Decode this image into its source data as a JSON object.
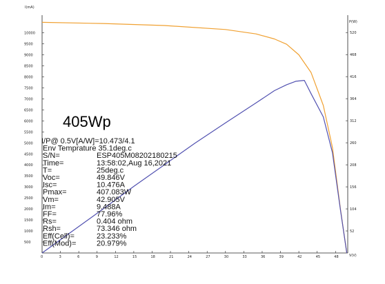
{
  "chart_data": {
    "type": "line",
    "title": "405Wp",
    "y_left_unit": "I(mA)",
    "y_right_unit": "P(W)",
    "x_unit": "V(V)",
    "x_ticks": [
      "0",
      "3",
      "6",
      "9",
      "12",
      "15",
      "18",
      "21",
      "24",
      "27",
      "30",
      "33",
      "36",
      "39",
      "42",
      "45",
      "48"
    ],
    "y_left_ticks": [
      "500",
      "1000",
      "1500",
      "2000",
      "2500",
      "3000",
      "3500",
      "4000",
      "4500",
      "5000",
      "5500",
      "6000",
      "6500",
      "7000",
      "7500",
      "8000",
      "8500",
      "9000",
      "9500",
      "10000"
    ],
    "y_right_ticks": [
      "52",
      "104",
      "156",
      "208",
      "260",
      "312",
      "364",
      "416",
      "468",
      "520"
    ],
    "xlim": [
      0,
      50
    ],
    "ylim_left": [
      0,
      10800
    ],
    "ylim_right": [
      0,
      561
    ],
    "grid": false,
    "series": [
      {
        "axis": "left",
        "color": "#f0a030",
        "x": [
          0,
          10,
          20,
          30,
          35,
          38,
          40,
          42,
          44,
          46,
          47.5,
          48.8,
          49.846
        ],
        "y": [
          10476,
          10420,
          10330,
          10150,
          9950,
          9720,
          9480,
          9000,
          8200,
          6700,
          4800,
          2000,
          0
        ]
      },
      {
        "axis": "right",
        "color": "#5050b0",
        "x": [
          0,
          5,
          10,
          15,
          20,
          25,
          30,
          35,
          38,
          40,
          41.5,
          42.9,
          44,
          46,
          47.5,
          48.8,
          49.846
        ],
        "y": [
          0,
          52,
          104,
          157,
          208,
          259,
          307,
          354,
          383,
          397,
          405,
          407.1,
          376,
          321,
          237,
          102,
          0
        ]
      }
    ]
  },
  "readout": {
    "title": "405Wp",
    "lines": [
      {
        "label": "I/P@ 0.5V[A/W]=10.473/4.1",
        "value": ""
      },
      {
        "label": "Env Temprature  35.1deg.c",
        "value": ""
      },
      {
        "label": "S/N=",
        "value": "ESP405M08202180215"
      },
      {
        "label": "Time=",
        "value": "13:58:02,Aug 16,2021"
      },
      {
        "label": "T=",
        "value": "25deg.c"
      },
      {
        "label": "Voc=",
        "value": "49.846V"
      },
      {
        "label": "Isc=",
        "value": "10.476A"
      },
      {
        "label": "Pmax=",
        "value": "407.083W"
      },
      {
        "label": "Vm=",
        "value": "42.905V"
      },
      {
        "label": "Im=",
        "value": "9.488A"
      },
      {
        "label": "FF=",
        "value": "77.96%"
      },
      {
        "label": "Rs=",
        "value": "0.404 ohm"
      },
      {
        "label": "Rsh=",
        "value": "73.346 ohm"
      },
      {
        "label": "Eff(Cell)=",
        "value": "23.233%"
      },
      {
        "label": "Eff(Mod)=",
        "value": "20.979%"
      }
    ]
  }
}
